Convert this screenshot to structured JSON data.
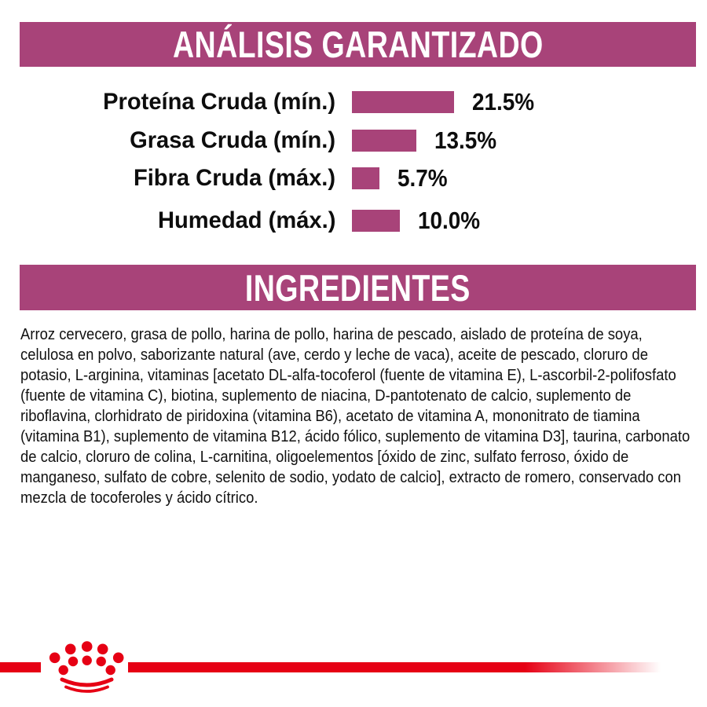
{
  "colors": {
    "banner_and_bars": "#a84379",
    "footer_red": "#e60014",
    "text": "#111111",
    "banner_text": "#ffffff",
    "background": "#ffffff"
  },
  "chart_data": {
    "type": "bar",
    "orientation": "horizontal",
    "title": "ANÁLISIS GARANTIZADO",
    "categories": [
      "Proteína Cruda (mín.)",
      "Grasa Cruda (mín.)",
      "Fibra Cruda (máx.)",
      "Humedad (máx.)"
    ],
    "values": [
      21.5,
      13.5,
      5.7,
      10.0
    ],
    "value_labels": [
      "21.5%",
      "13.5%",
      "5.7%",
      "10.0%"
    ],
    "unit": "%",
    "bar_color": "#a84379",
    "layout_hints": {
      "category_label_position": "left-of-bar",
      "value_label_position": "right-of-bar",
      "grid": false,
      "axes_shown": false
    }
  },
  "ingredients": {
    "title": "INGREDIENTES",
    "text": "Arroz cervecero, grasa de pollo, harina de pollo, harina de pescado, aislado de proteína de soya, celulosa en polvo, saborizante natural (ave, cerdo y leche de vaca), aceite de pescado, cloruro de potasio, L-arginina, vitaminas [acetato DL-alfa-tocoferol (fuente de vitamina E), L-ascorbil-2-polifosfato (fuente de vitamina C), biotina, suplemento de niacina, D-pantotenato de calcio, suplemento de riboflavina, clorhidrato de piridoxina (vitamina B6), acetato de vitamina A, mononitrato de tiamina (vitamina B1), suplemento de vitamina B12, ácido fólico, suplemento de vitamina D3], taurina, carbonato de calcio, cloruro de colina, L-carnitina, oligoelementos [óxido de zinc, sulfato ferroso, óxido de manganeso, sulfato de cobre, selenito de sodio, yodato de calcio], extracto de romero, conservado con mezcla de tocoferoles y ácido cítrico."
  },
  "footer": {
    "logo": "royal-canin-crown-logo"
  }
}
